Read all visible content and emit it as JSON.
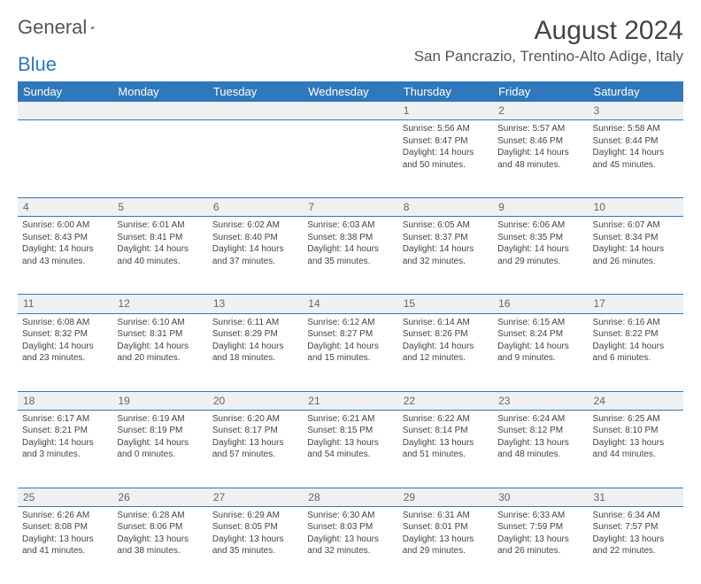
{
  "brand": {
    "part1": "General",
    "part2": "Blue"
  },
  "title": "August 2024",
  "location": "San Pancrazio, Trentino-Alto Adige, Italy",
  "theme": {
    "header_bg": "#2f78bb",
    "header_fg": "#ffffff",
    "daynum_bg": "#eef0f1",
    "border_color": "#2f78bb",
    "text_color": "#444444"
  },
  "weekdays": [
    "Sunday",
    "Monday",
    "Tuesday",
    "Wednesday",
    "Thursday",
    "Friday",
    "Saturday"
  ],
  "weeks": [
    [
      null,
      null,
      null,
      null,
      {
        "n": "1",
        "sr": "Sunrise: 5:56 AM",
        "ss": "Sunset: 8:47 PM",
        "d1": "Daylight: 14 hours",
        "d2": "and 50 minutes."
      },
      {
        "n": "2",
        "sr": "Sunrise: 5:57 AM",
        "ss": "Sunset: 8:46 PM",
        "d1": "Daylight: 14 hours",
        "d2": "and 48 minutes."
      },
      {
        "n": "3",
        "sr": "Sunrise: 5:58 AM",
        "ss": "Sunset: 8:44 PM",
        "d1": "Daylight: 14 hours",
        "d2": "and 45 minutes."
      }
    ],
    [
      {
        "n": "4",
        "sr": "Sunrise: 6:00 AM",
        "ss": "Sunset: 8:43 PM",
        "d1": "Daylight: 14 hours",
        "d2": "and 43 minutes."
      },
      {
        "n": "5",
        "sr": "Sunrise: 6:01 AM",
        "ss": "Sunset: 8:41 PM",
        "d1": "Daylight: 14 hours",
        "d2": "and 40 minutes."
      },
      {
        "n": "6",
        "sr": "Sunrise: 6:02 AM",
        "ss": "Sunset: 8:40 PM",
        "d1": "Daylight: 14 hours",
        "d2": "and 37 minutes."
      },
      {
        "n": "7",
        "sr": "Sunrise: 6:03 AM",
        "ss": "Sunset: 8:38 PM",
        "d1": "Daylight: 14 hours",
        "d2": "and 35 minutes."
      },
      {
        "n": "8",
        "sr": "Sunrise: 6:05 AM",
        "ss": "Sunset: 8:37 PM",
        "d1": "Daylight: 14 hours",
        "d2": "and 32 minutes."
      },
      {
        "n": "9",
        "sr": "Sunrise: 6:06 AM",
        "ss": "Sunset: 8:35 PM",
        "d1": "Daylight: 14 hours",
        "d2": "and 29 minutes."
      },
      {
        "n": "10",
        "sr": "Sunrise: 6:07 AM",
        "ss": "Sunset: 8:34 PM",
        "d1": "Daylight: 14 hours",
        "d2": "and 26 minutes."
      }
    ],
    [
      {
        "n": "11",
        "sr": "Sunrise: 6:08 AM",
        "ss": "Sunset: 8:32 PM",
        "d1": "Daylight: 14 hours",
        "d2": "and 23 minutes."
      },
      {
        "n": "12",
        "sr": "Sunrise: 6:10 AM",
        "ss": "Sunset: 8:31 PM",
        "d1": "Daylight: 14 hours",
        "d2": "and 20 minutes."
      },
      {
        "n": "13",
        "sr": "Sunrise: 6:11 AM",
        "ss": "Sunset: 8:29 PM",
        "d1": "Daylight: 14 hours",
        "d2": "and 18 minutes."
      },
      {
        "n": "14",
        "sr": "Sunrise: 6:12 AM",
        "ss": "Sunset: 8:27 PM",
        "d1": "Daylight: 14 hours",
        "d2": "and 15 minutes."
      },
      {
        "n": "15",
        "sr": "Sunrise: 6:14 AM",
        "ss": "Sunset: 8:26 PM",
        "d1": "Daylight: 14 hours",
        "d2": "and 12 minutes."
      },
      {
        "n": "16",
        "sr": "Sunrise: 6:15 AM",
        "ss": "Sunset: 8:24 PM",
        "d1": "Daylight: 14 hours",
        "d2": "and 9 minutes."
      },
      {
        "n": "17",
        "sr": "Sunrise: 6:16 AM",
        "ss": "Sunset: 8:22 PM",
        "d1": "Daylight: 14 hours",
        "d2": "and 6 minutes."
      }
    ],
    [
      {
        "n": "18",
        "sr": "Sunrise: 6:17 AM",
        "ss": "Sunset: 8:21 PM",
        "d1": "Daylight: 14 hours",
        "d2": "and 3 minutes."
      },
      {
        "n": "19",
        "sr": "Sunrise: 6:19 AM",
        "ss": "Sunset: 8:19 PM",
        "d1": "Daylight: 14 hours",
        "d2": "and 0 minutes."
      },
      {
        "n": "20",
        "sr": "Sunrise: 6:20 AM",
        "ss": "Sunset: 8:17 PM",
        "d1": "Daylight: 13 hours",
        "d2": "and 57 minutes."
      },
      {
        "n": "21",
        "sr": "Sunrise: 6:21 AM",
        "ss": "Sunset: 8:15 PM",
        "d1": "Daylight: 13 hours",
        "d2": "and 54 minutes."
      },
      {
        "n": "22",
        "sr": "Sunrise: 6:22 AM",
        "ss": "Sunset: 8:14 PM",
        "d1": "Daylight: 13 hours",
        "d2": "and 51 minutes."
      },
      {
        "n": "23",
        "sr": "Sunrise: 6:24 AM",
        "ss": "Sunset: 8:12 PM",
        "d1": "Daylight: 13 hours",
        "d2": "and 48 minutes."
      },
      {
        "n": "24",
        "sr": "Sunrise: 6:25 AM",
        "ss": "Sunset: 8:10 PM",
        "d1": "Daylight: 13 hours",
        "d2": "and 44 minutes."
      }
    ],
    [
      {
        "n": "25",
        "sr": "Sunrise: 6:26 AM",
        "ss": "Sunset: 8:08 PM",
        "d1": "Daylight: 13 hours",
        "d2": "and 41 minutes."
      },
      {
        "n": "26",
        "sr": "Sunrise: 6:28 AM",
        "ss": "Sunset: 8:06 PM",
        "d1": "Daylight: 13 hours",
        "d2": "and 38 minutes."
      },
      {
        "n": "27",
        "sr": "Sunrise: 6:29 AM",
        "ss": "Sunset: 8:05 PM",
        "d1": "Daylight: 13 hours",
        "d2": "and 35 minutes."
      },
      {
        "n": "28",
        "sr": "Sunrise: 6:30 AM",
        "ss": "Sunset: 8:03 PM",
        "d1": "Daylight: 13 hours",
        "d2": "and 32 minutes."
      },
      {
        "n": "29",
        "sr": "Sunrise: 6:31 AM",
        "ss": "Sunset: 8:01 PM",
        "d1": "Daylight: 13 hours",
        "d2": "and 29 minutes."
      },
      {
        "n": "30",
        "sr": "Sunrise: 6:33 AM",
        "ss": "Sunset: 7:59 PM",
        "d1": "Daylight: 13 hours",
        "d2": "and 26 minutes."
      },
      {
        "n": "31",
        "sr": "Sunrise: 6:34 AM",
        "ss": "Sunset: 7:57 PM",
        "d1": "Daylight: 13 hours",
        "d2": "and 22 minutes."
      }
    ]
  ]
}
